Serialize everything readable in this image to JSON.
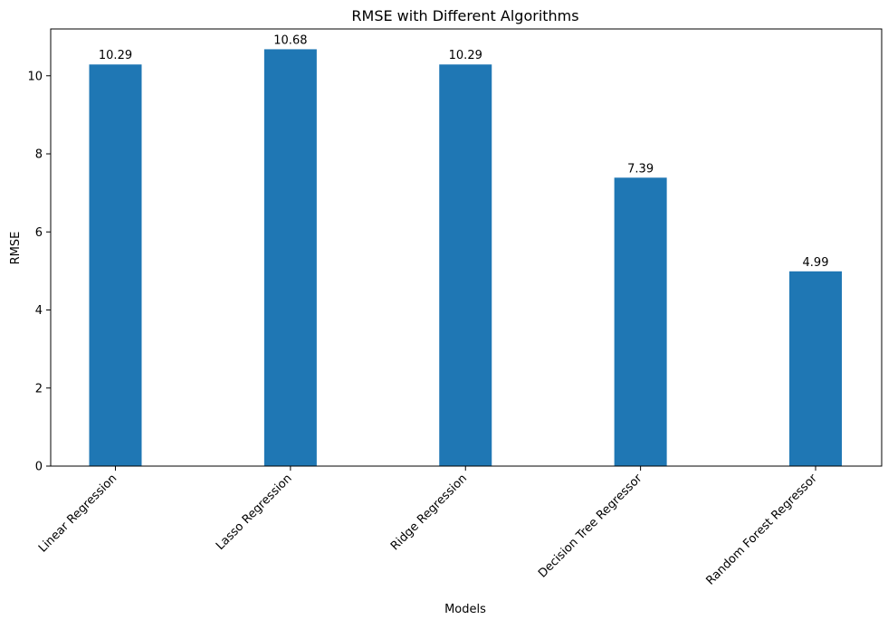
{
  "chart_data": {
    "type": "bar",
    "title": "RMSE with Different Algorithms",
    "xlabel": "Models",
    "ylabel": "RMSE",
    "categories": [
      "Linear Regression",
      "Lasso Regression",
      "Ridge Regression",
      "Decision Tree Regressor",
      "Random Forest Regressor"
    ],
    "values": [
      10.29,
      10.68,
      10.29,
      7.39,
      4.99
    ],
    "data_labels": [
      "10.29",
      "10.68",
      "10.29",
      "7.39",
      "4.99"
    ],
    "ylim": [
      0,
      11.2
    ],
    "yticks": [
      0,
      2,
      4,
      6,
      8,
      10
    ],
    "ytick_labels": [
      "0",
      "2",
      "4",
      "6",
      "8",
      "10"
    ],
    "grid": false,
    "legend": "none",
    "bar_color": "#1f77b4"
  }
}
